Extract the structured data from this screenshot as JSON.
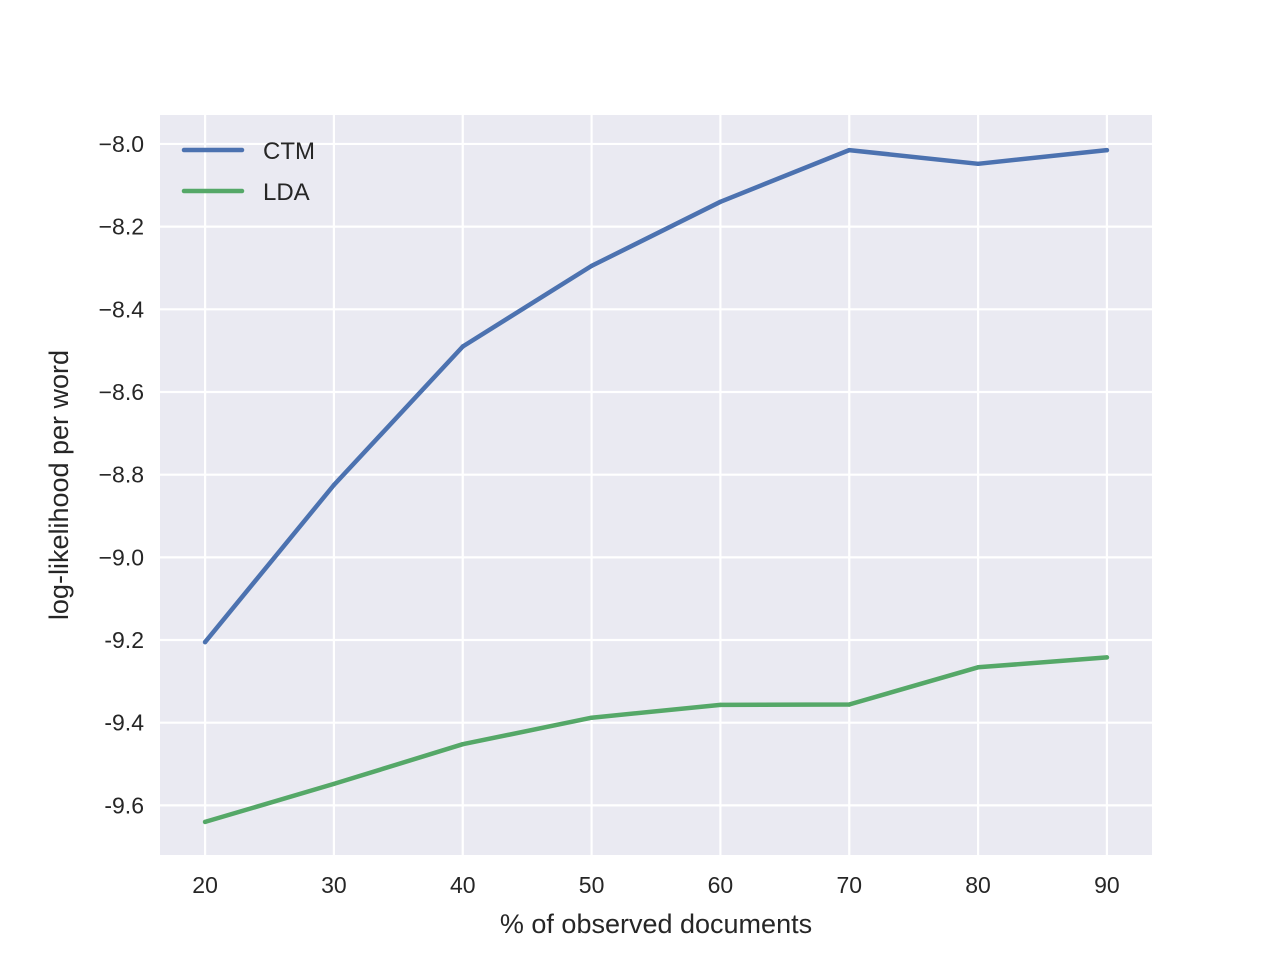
{
  "chart_data": {
    "type": "line",
    "title": "",
    "xlabel": "% of observed documents",
    "ylabel": "log-likelihood per word",
    "x": [
      20,
      30,
      40,
      50,
      60,
      70,
      80,
      90
    ],
    "xlim": [
      16.5,
      93.5
    ],
    "ylim": [
      -9.72,
      -7.93
    ],
    "xticks": [
      20,
      30,
      40,
      50,
      60,
      70,
      80,
      90
    ],
    "xtick_labels": [
      "20",
      "30",
      "40",
      "50",
      "60",
      "70",
      "80",
      "90"
    ],
    "yticks": [
      -8.0,
      -8.2,
      -8.4,
      -8.6,
      -8.8,
      -9.0,
      -9.2,
      -9.4,
      -9.6
    ],
    "ytick_labels": [
      "−8.0",
      "−8.2",
      "−8.4",
      "−8.6",
      "−8.8",
      "−9.0",
      "-9.2",
      "-9.4",
      "-9.6"
    ],
    "grid": true,
    "legend_position": "top-left",
    "series": [
      {
        "name": "CTM",
        "color": "#4c72b0",
        "values": [
          -9.205,
          -8.825,
          -8.49,
          -8.295,
          -8.14,
          -8.015,
          -8.048,
          -8.015
        ]
      },
      {
        "name": "LDA",
        "color": "#55a868",
        "values": [
          -9.64,
          -9.548,
          -9.452,
          -9.388,
          -9.357,
          -9.356,
          -9.266,
          -9.242
        ]
      }
    ],
    "style": {
      "plot_background": "#eaeaf2",
      "grid_color": "#ffffff",
      "text_color": "#262626"
    }
  }
}
